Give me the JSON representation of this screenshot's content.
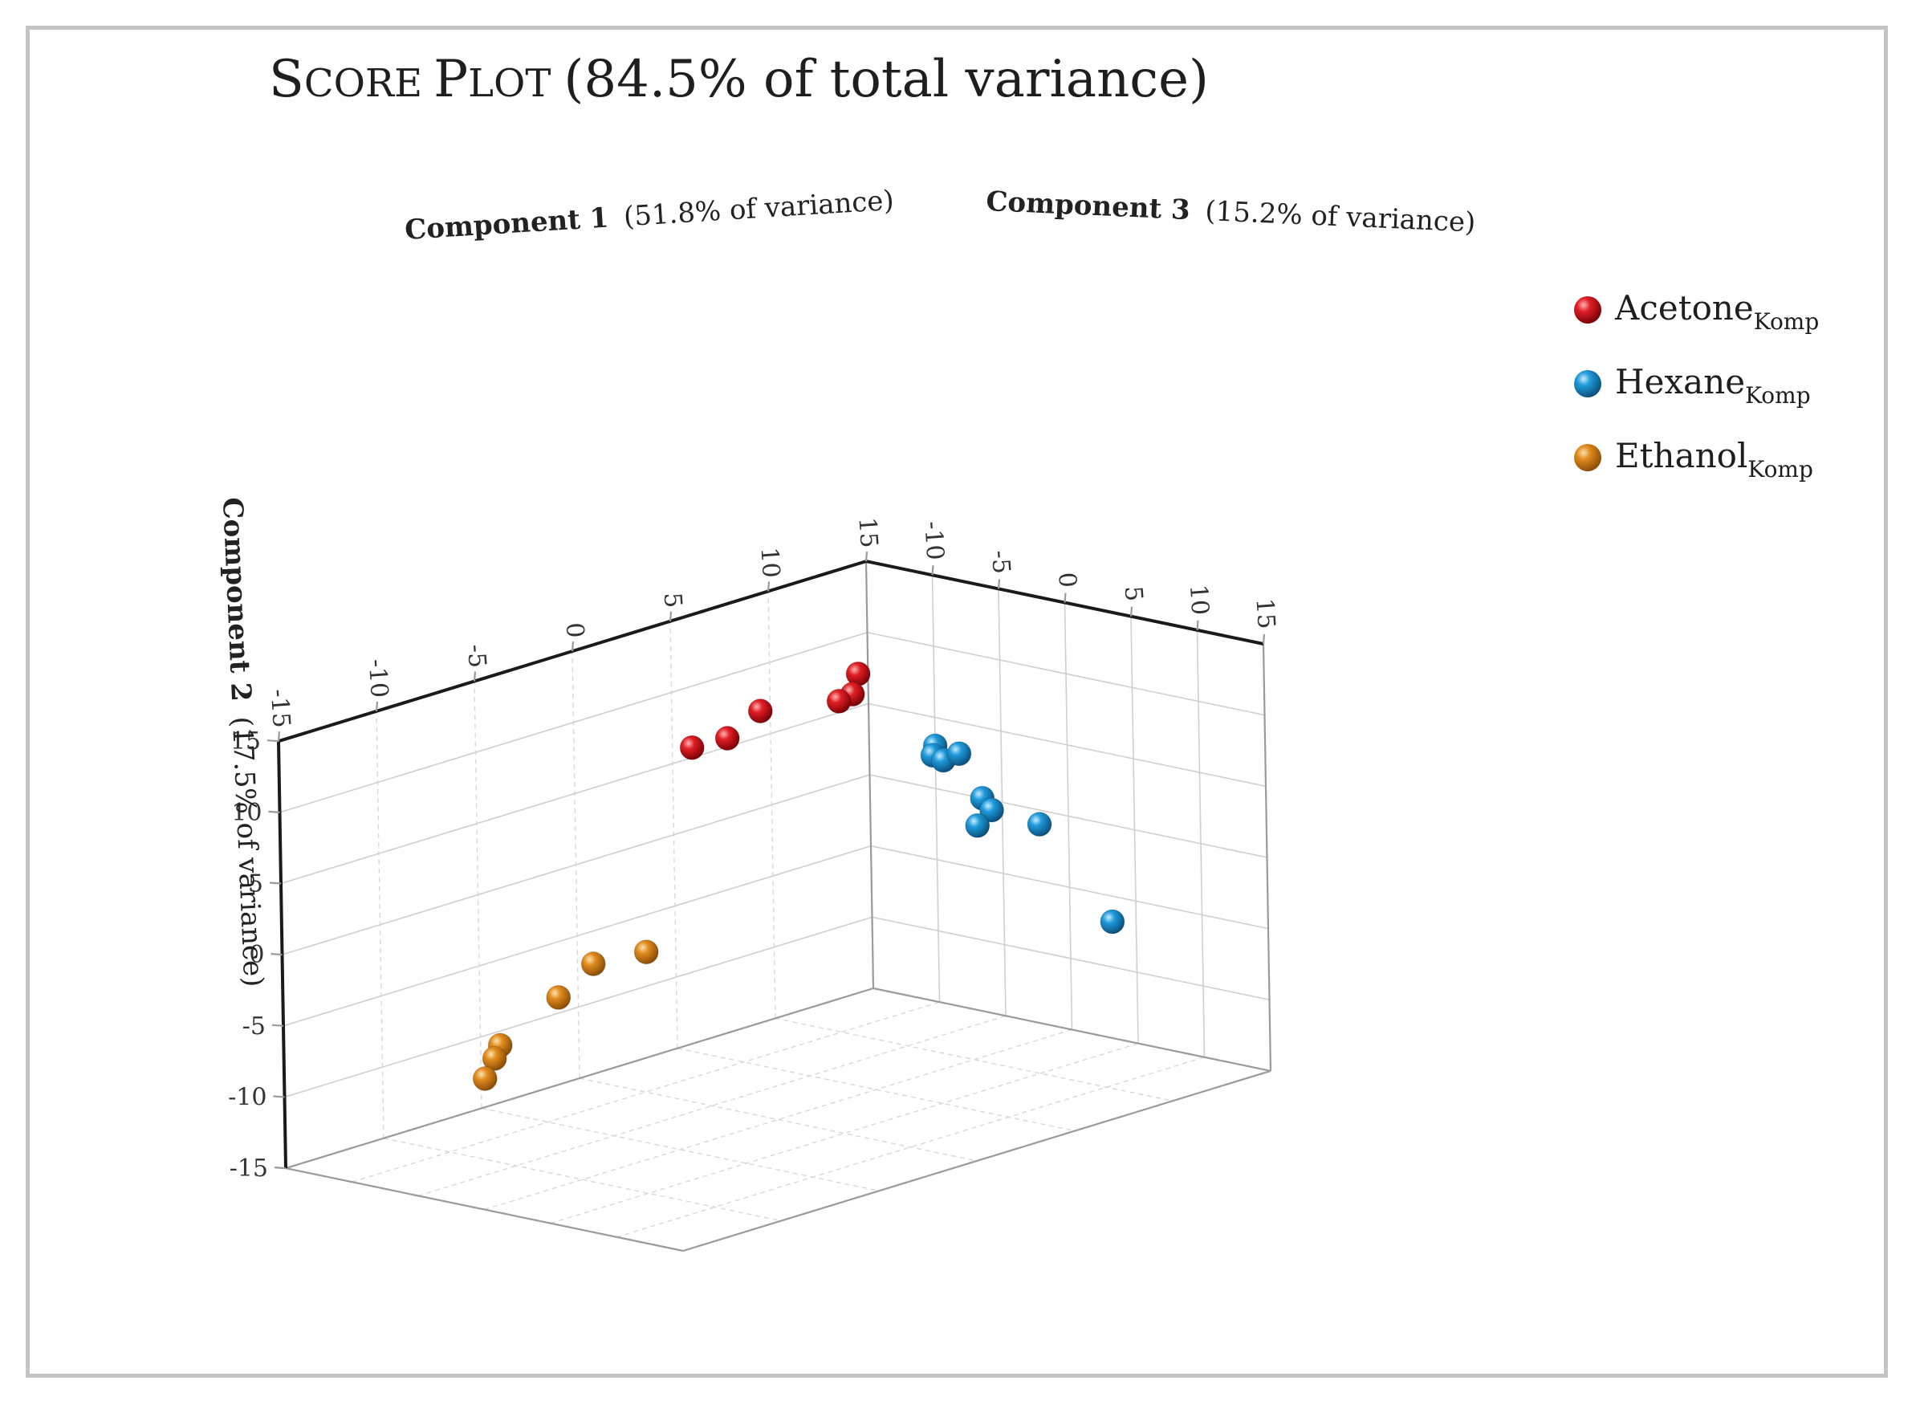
{
  "chart_data": {
    "type": "scatter3d",
    "title_main_first": "S",
    "title_small_caps_1": "CORE",
    "title_main_p": "P",
    "title_small_caps_2": "LOT",
    "title_rest": "(84.5% of total variance)",
    "x_axis": {
      "label_bold": "Component 1",
      "label_rest": "(51.8% of variance)",
      "range": [
        -15,
        15
      ],
      "ticks": [
        "-15",
        "-10",
        "-5",
        "0",
        "5",
        "10",
        "15"
      ]
    },
    "y_axis": {
      "label_bold": "Component 2",
      "label_rest": "(17.5% of variance)",
      "range": [
        -15,
        15
      ],
      "ticks": [
        "15",
        "10",
        "5",
        "0",
        "-5",
        "-10",
        "-15"
      ]
    },
    "z_axis": {
      "label_bold": "Component 3",
      "label_rest": "(15.2% of variance)",
      "range": [
        -15,
        15
      ],
      "ticks": [
        "-10",
        "-5",
        "0",
        "5",
        "10",
        "15"
      ]
    },
    "series": [
      {
        "name": "Acetone",
        "subscript": "Komp",
        "color": "#d4121a",
        "points": [
          {
            "c1": 14.5,
            "c2": 7.3,
            "c3": -15
          },
          {
            "c1": 14.2,
            "c2": 6.0,
            "c3": -15
          },
          {
            "c1": 13.5,
            "c2": 5.8,
            "c3": -15
          },
          {
            "c1": 9.5,
            "c2": 6.8,
            "c3": -15
          },
          {
            "c1": 7.8,
            "c2": 5.6,
            "c3": -15
          },
          {
            "c1": 6.0,
            "c2": 5.7,
            "c3": -15
          }
        ]
      },
      {
        "name": "Hexane",
        "subscript": "Komp",
        "color": "#1c93d2",
        "points": [
          {
            "c1": 15,
            "c2": 3.0,
            "c3": -10.0
          },
          {
            "c1": 15,
            "c2": 2.3,
            "c3": -10.2
          },
          {
            "c1": 15,
            "c2": 2.1,
            "c3": -9.4
          },
          {
            "c1": 15,
            "c2": 2.8,
            "c3": -8.2
          },
          {
            "c1": 15,
            "c2": 0.0,
            "c3": -6.5
          },
          {
            "c1": 15,
            "c2": -0.7,
            "c3": -5.8
          },
          {
            "c1": 15,
            "c2": -2.0,
            "c3": -6.9
          },
          {
            "c1": 15,
            "c2": -1.0,
            "c3": -2.2
          },
          {
            "c1": 15,
            "c2": -6.8,
            "c3": 3.2
          }
        ]
      },
      {
        "name": "Ethanol",
        "subscript": "Komp",
        "color": "#d9841a",
        "points": [
          {
            "c1": 0.8,
            "c2": -7.3,
            "c3": -15
          },
          {
            "c1": 3.5,
            "c2": -7.6,
            "c3": -15
          },
          {
            "c1": -1.0,
            "c2": -8.9,
            "c3": -15
          },
          {
            "c1": -4.0,
            "c2": -11.0,
            "c3": -15
          },
          {
            "c1": -4.3,
            "c2": -11.8,
            "c3": -15
          },
          {
            "c1": -4.8,
            "c2": -13.0,
            "c3": -15
          }
        ]
      }
    ]
  }
}
